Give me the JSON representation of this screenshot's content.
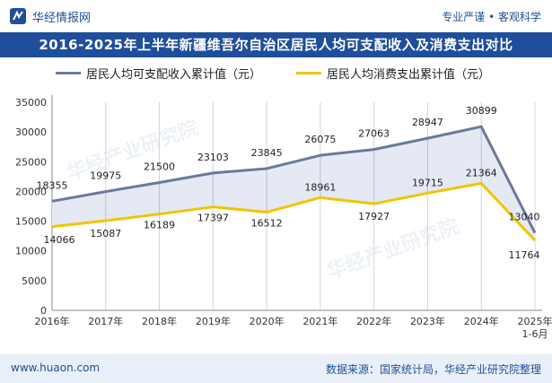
{
  "header": {
    "brand": "华经情报网",
    "tagline": "专业严谨 • 客观科学"
  },
  "title": "2016-2025年上半年新疆维吾尔自治区居民人均可支配收入及消费支出对比",
  "footer": {
    "website": "www.huaon.com",
    "source": "数据来源：国家统计局，华经产业研究院整理"
  },
  "watermark": "华经产业研究院",
  "colors": {
    "brand": "#1f4e9a",
    "income": "#6b7a99",
    "consumption": "#f2c400",
    "fill": "#e4e9f4"
  },
  "chart_data": {
    "type": "line",
    "title": "2016-2025年上半年新疆维吾尔自治区居民人均可支配收入及消费支出对比",
    "categories": [
      "2016年",
      "2017年",
      "2018年",
      "2019年",
      "2020年",
      "2021年",
      "2022年",
      "2023年",
      "2024年",
      "2025年\n1-6月"
    ],
    "series": [
      {
        "name": "居民人均可支配收入累计值（元）",
        "values": [
          18355,
          19975,
          21500,
          23103,
          23845,
          26075,
          27063,
          28947,
          30899,
          13040
        ]
      },
      {
        "name": "居民人均消费支出累计值（元）",
        "values": [
          14066,
          15087,
          16189,
          17397,
          16512,
          18961,
          17927,
          19715,
          21364,
          11764
        ]
      }
    ],
    "ylim": [
      0,
      35000
    ],
    "yticks": [
      0,
      5000,
      10000,
      15000,
      20000,
      25000,
      30000,
      35000
    ],
    "legend": "top"
  }
}
